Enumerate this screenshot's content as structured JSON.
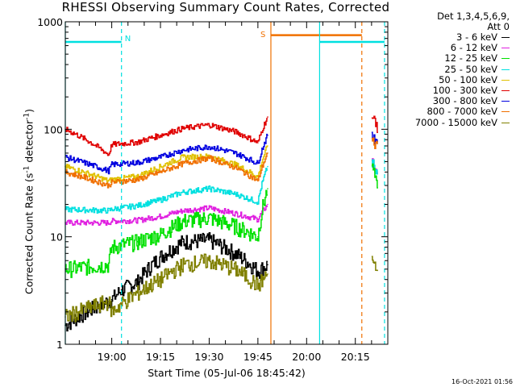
{
  "header": {
    "title": "RHESSI Observing Summary Count Rates, Corrected",
    "det_line": "Det 1,3,4,5,6,9,",
    "att_line": "Att 0",
    "timestamp": "16-Oct-2021 01:56"
  },
  "chart_data": {
    "type": "line",
    "title": "RHESSI Observing Summary Count Rates, Corrected",
    "xlabel": "Start Time (05-Jul-06 18:45:42)",
    "ylabel": "Corrected Count Rate (s^-1 detector^-1)",
    "ylabel_parts": {
      "main": "Corrected Count Rate (s",
      "sup1": "-1",
      "mid": " detector",
      "sup2": "-1",
      "end": ")"
    },
    "y_scale": "log",
    "ylim": [
      1,
      1000
    ],
    "y_ticks": [
      1,
      10,
      100,
      1000
    ],
    "y_tick_labels": [
      "1",
      "10",
      "100",
      "1000"
    ],
    "xlim": [
      "18:45:42",
      "20:25"
    ],
    "x_ticks": [
      "19:00",
      "19:15",
      "19:30",
      "19:45",
      "20:00",
      "20:15"
    ],
    "x_tick_labels": [
      "19:00",
      "19:15",
      "19:30",
      "19:45",
      "20:00",
      "20:15"
    ],
    "series": [
      {
        "name": "3 - 6 keV",
        "color": "#000000",
        "x": [
          "18:45:42",
          "19:00",
          "19:03",
          "19:08",
          "19:15",
          "19:22",
          "19:30",
          "19:38",
          "19:45",
          "19:48"
        ],
        "y": [
          1.5,
          2.6,
          3.2,
          3.8,
          6.5,
          9.0,
          9.3,
          7.0,
          4.8,
          5.5
        ]
      },
      {
        "name": "6 - 12 keV",
        "color": "#e020e0",
        "x": [
          "18:45:42",
          "18:59",
          "19:00",
          "19:08",
          "19:15",
          "19:22",
          "19:30",
          "19:38",
          "19:45",
          "19:48"
        ],
        "y": [
          13.5,
          13.5,
          14.0,
          14.2,
          15.5,
          17.5,
          18.5,
          16.5,
          14.5,
          20.0
        ]
      },
      {
        "name": "12 - 25 keV",
        "color": "#00e000",
        "x": [
          "18:45:42",
          "18:59",
          "19:00",
          "19:08",
          "19:15",
          "19:22",
          "19:30",
          "19:38",
          "19:45",
          "19:48"
        ],
        "y": [
          5.0,
          5.5,
          8.0,
          9.0,
          10.5,
          14.0,
          15.0,
          12.5,
          10.0,
          28.0
        ]
      },
      {
        "name": "25 - 50 keV",
        "color": "#00e0e0",
        "x": [
          "18:45:42",
          "18:59",
          "19:00",
          "19:08",
          "19:15",
          "19:22",
          "19:30",
          "19:38",
          "19:45",
          "19:48"
        ],
        "y": [
          18.0,
          17.5,
          18.0,
          19.5,
          22.0,
          26.0,
          28.0,
          25.0,
          21.0,
          45.0
        ]
      },
      {
        "name": "50 - 100 keV",
        "color": "#e0c000",
        "x": [
          "18:45:42",
          "18:59",
          "19:00",
          "19:08",
          "19:15",
          "19:22",
          "19:30",
          "19:38",
          "19:45",
          "19:48"
        ],
        "y": [
          45.0,
          33.0,
          34.0,
          36.5,
          45.0,
          55.0,
          56.0,
          47.0,
          36.0,
          70.0
        ]
      },
      {
        "name": "100 - 300 keV",
        "color": "#e00000",
        "x": [
          "18:45:42",
          "18:59",
          "19:00",
          "19:08",
          "19:15",
          "19:22",
          "19:30",
          "19:38",
          "19:45",
          "19:48"
        ],
        "y": [
          100.0,
          58.0,
          72.0,
          76.0,
          88.0,
          102.0,
          110.0,
          95.0,
          75.0,
          130.0
        ]
      },
      {
        "name": "300 - 800 keV",
        "color": "#0000e0",
        "x": [
          "18:45:42",
          "18:59",
          "19:00",
          "19:08",
          "19:15",
          "19:22",
          "19:30",
          "19:38",
          "19:45",
          "19:48"
        ],
        "y": [
          55.0,
          41.0,
          47.0,
          49.0,
          55.0,
          64.0,
          69.0,
          60.0,
          48.0,
          88.0
        ]
      },
      {
        "name": "800 - 7000 keV",
        "color": "#f07000",
        "x": [
          "18:45:42",
          "18:59",
          "19:00",
          "19:08",
          "19:15",
          "19:22",
          "19:30",
          "19:38",
          "19:45",
          "19:48"
        ],
        "y": [
          40.0,
          30.0,
          32.0,
          34.0,
          40.0,
          48.0,
          54.0,
          44.0,
          33.0,
          60.0
        ]
      },
      {
        "name": "7000 - 15000 keV",
        "color": "#808000",
        "x": [
          "18:45:42",
          "18:59",
          "19:00",
          "19:08",
          "19:15",
          "19:22",
          "19:30",
          "19:38",
          "19:45",
          "19:48"
        ],
        "y": [
          1.8,
          2.5,
          2.0,
          3.0,
          4.0,
          5.5,
          6.0,
          5.0,
          3.5,
          4.5
        ]
      }
    ],
    "after_gap": {
      "x": [
        "20:20",
        "20:22"
      ],
      "y_100_300": [
        130,
        100
      ],
      "y_300_800": [
        85,
        75
      ],
      "y_800_7000": [
        78,
        70
      ],
      "y_25_50": [
        50,
        40
      ],
      "y_12_25": [
        45,
        30
      ],
      "y_7000": [
        6,
        4.5
      ],
      "y_6_12": [
        55,
        35
      ]
    },
    "annotations": {
      "n_label": "N",
      "s_label": "S",
      "n_bar": {
        "x": [
          "18:45:42",
          "19:03"
        ],
        "y": 650
      },
      "n_bar2": {
        "x": [
          "20:04",
          "20:24"
        ],
        "y": 650
      },
      "s_bar": {
        "x": [
          "19:49",
          "20:17"
        ],
        "y": 750
      },
      "night_solid": [
        "18:45:42",
        "20:04"
      ],
      "night_dashed": [
        "19:03",
        "20:24"
      ],
      "saa_solid": "19:49",
      "saa_dashed": "20:17"
    }
  },
  "colors": {
    "axis": "#000000",
    "night": "#00e0e0",
    "saa": "#f07000"
  }
}
